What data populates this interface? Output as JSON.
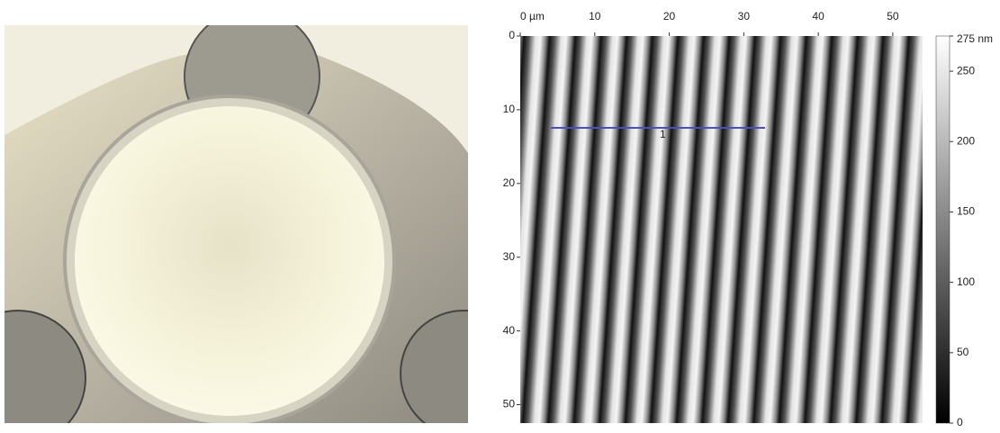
{
  "afm_image": {
    "x_axis": {
      "lim": [
        0,
        54
      ],
      "ticks": [
        {
          "value": 0,
          "label": "0 µm"
        },
        10,
        20,
        30,
        40,
        50
      ]
    },
    "y_axis": {
      "lim": [
        0,
        52.5
      ],
      "ticks": [
        0,
        10,
        20,
        30,
        40,
        50
      ]
    },
    "colorbar": {
      "lim": [
        0,
        275
      ],
      "ticks": [
        {
          "value": 275,
          "label": "275 nm"
        },
        250,
        200,
        150,
        100,
        50,
        0
      ]
    },
    "profile_label": "1"
  }
}
